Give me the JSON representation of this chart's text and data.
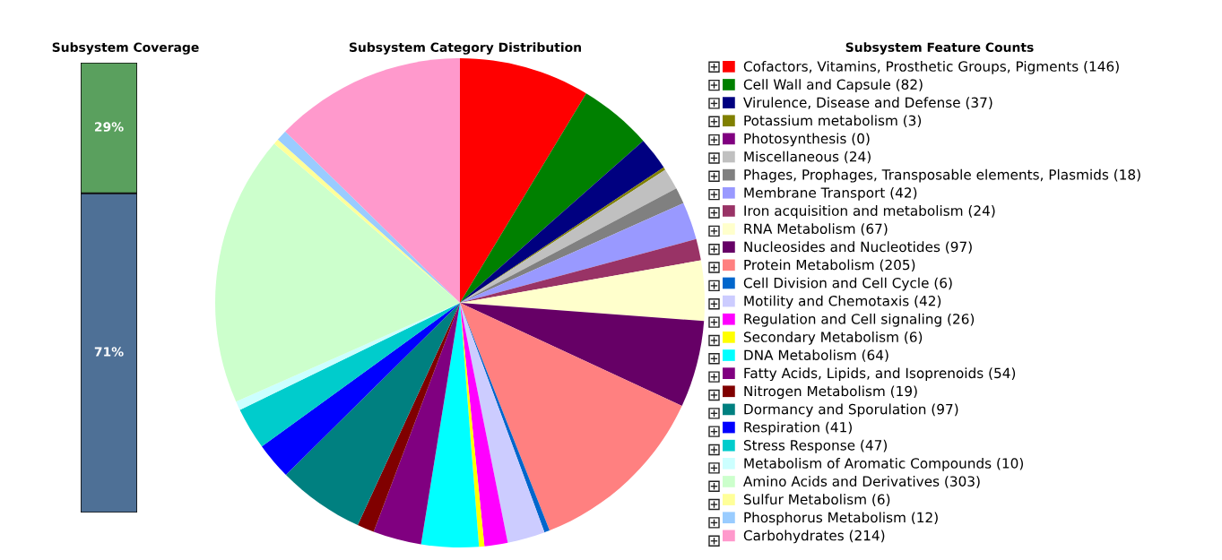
{
  "chart_data": [
    {
      "type": "bar",
      "title": "Subsystem Coverage",
      "stacked": true,
      "categories": [
        null
      ],
      "ylim": [
        0,
        100
      ],
      "tick_labels": false,
      "series": [
        {
          "color": "#4e7096",
          "values": [
            71
          ],
          "value_labels": [
            "71%"
          ]
        },
        {
          "color": "#5aa05e",
          "values": [
            29
          ],
          "value_labels": [
            "29%"
          ]
        }
      ]
    },
    {
      "type": "pie",
      "title": "Subsystem Category Distribution",
      "legend_title": "Subsystem Feature Counts",
      "legend": "right",
      "categories": [
        "Cofactors, Vitamins, Prosthetic Groups, Pigments (146)",
        "Cell Wall and Capsule (82)",
        "Virulence, Disease and Defense (37)",
        "Potassium metabolism (3)",
        "Photosynthesis (0)",
        "Miscellaneous (24)",
        "Phages, Prophages, Transposable elements, Plasmids (18)",
        "Membrane Transport (42)",
        "Iron acquisition and metabolism (24)",
        "RNA Metabolism (67)",
        "Nucleosides and Nucleotides (97)",
        "Protein Metabolism (205)",
        "Cell Division and Cell Cycle (6)",
        "Motility and Chemotaxis (42)",
        "Regulation and Cell signaling (26)",
        "Secondary Metabolism (6)",
        "DNA Metabolism (64)",
        "Fatty Acids, Lipids, and Isoprenoids (54)",
        "Nitrogen Metabolism (19)",
        "Dormancy and Sporulation (97)",
        "Respiration (41)",
        "Stress Response (47)",
        "Metabolism of Aromatic Compounds (10)",
        "Amino Acids and Derivatives (303)",
        "Sulfur Metabolism (6)",
        "Phosphorus Metabolism (12)",
        "Carbohydrates (214)"
      ],
      "values": [
        146,
        82,
        37,
        3,
        0,
        24,
        18,
        42,
        24,
        67,
        97,
        205,
        6,
        42,
        26,
        6,
        64,
        54,
        19,
        97,
        41,
        47,
        10,
        303,
        6,
        12,
        214
      ],
      "colors": [
        "#ff0000",
        "#008000",
        "#000080",
        "#808000",
        "#800080",
        "#c0c0c0",
        "#808080",
        "#9999ff",
        "#993366",
        "#ffffcc",
        "#660066",
        "#ff8080",
        "#0066cc",
        "#ccccff",
        "#ff00ff",
        "#ffff00",
        "#00ffff",
        "#800080",
        "#800000",
        "#008080",
        "#0000ff",
        "#00cccc",
        "#ccffff",
        "#ccffcc",
        "#ffff99",
        "#99ccff",
        "#ff99cc"
      ]
    }
  ]
}
